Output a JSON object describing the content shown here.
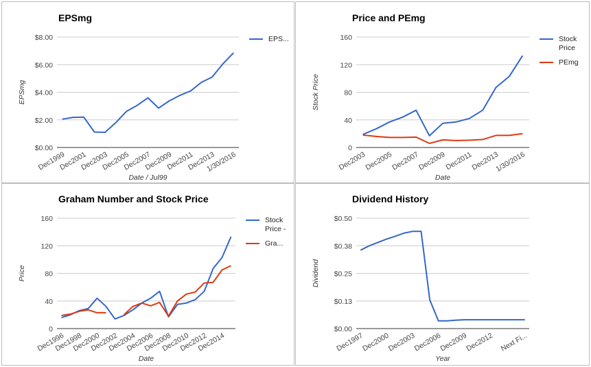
{
  "chart_data": [
    {
      "type": "line",
      "title": "EPSmg",
      "xlabel": "Date / Jul99",
      "ylabel": "EPSmg",
      "ylim": [
        0,
        8
      ],
      "yticks": [
        "$0.00",
        "$2.00",
        "$4.00",
        "$6.00",
        "$8.00"
      ],
      "yticks_values": [
        0,
        2,
        4,
        6,
        8
      ],
      "categories": [
        "Dec1999",
        "Dec2000",
        "Dec2001",
        "Dec2002",
        "Dec2003",
        "Dec2004",
        "Dec2005",
        "Dec2006",
        "Dec2007",
        "Dec2008",
        "Dec2009",
        "Dec2010",
        "Dec2011",
        "Dec2012",
        "Dec2013",
        "Dec2014",
        "1/30/2016"
      ],
      "xtick_labels": [
        "Dec1999",
        "Dec2001",
        "Dec2003",
        "Dec2005",
        "Dec2007",
        "Dec2009",
        "Dec2011",
        "Dec2013",
        "1/30/2016"
      ],
      "series": [
        {
          "name": "EPS...",
          "color": "#3366cc",
          "values": [
            2.05,
            2.18,
            2.2,
            1.12,
            1.1,
            1.8,
            2.62,
            3.05,
            3.6,
            2.85,
            3.38,
            3.78,
            4.1,
            4.72,
            5.1,
            6.05,
            6.85
          ]
        }
      ],
      "legend": "right",
      "grid": true
    },
    {
      "type": "line",
      "title": "Price and PEmg",
      "xlabel": "Date",
      "ylabel": "Stock Price",
      "ylim": [
        0,
        160
      ],
      "yticks": [
        "0",
        "40",
        "80",
        "120",
        "160"
      ],
      "yticks_values": [
        0,
        40,
        80,
        120,
        160
      ],
      "categories": [
        "Dec2003",
        "Dec2004",
        "Dec2005",
        "Dec2006",
        "Dec2007",
        "Dec2008",
        "Dec2009",
        "Dec2010",
        "Dec2011",
        "Dec2012",
        "Dec2013",
        "Dec2014",
        "1/30/2016"
      ],
      "xtick_labels": [
        "Dec2003",
        "Dec2005",
        "Dec2007",
        "Dec2009",
        "Dec2011",
        "Dec2013",
        "1/30/2016"
      ],
      "series": [
        {
          "name": "Stock Price",
          "color": "#3366cc",
          "values": [
            19,
            27,
            37,
            44,
            54,
            17,
            35,
            37,
            42,
            54,
            87,
            103,
            133
          ]
        },
        {
          "name": "PEmg",
          "color": "#dc3912",
          "values": [
            18,
            16,
            14.5,
            14.5,
            15,
            6,
            11,
            10,
            10.5,
            11.5,
            17.5,
            17.5,
            20
          ]
        }
      ],
      "legend": "right",
      "grid": true
    },
    {
      "type": "line",
      "title": "Graham Number and Stock Price",
      "xlabel": "Date",
      "ylabel": "Price",
      "ylim": [
        0,
        160
      ],
      "yticks": [
        "0",
        "40",
        "80",
        "120",
        "160"
      ],
      "yticks_values": [
        0,
        40,
        80,
        120,
        160
      ],
      "categories": [
        "Dec1996",
        "Dec1997",
        "Dec1998",
        "Dec1999",
        "Dec2000",
        "Dec2001",
        "Dec2002",
        "Dec2003",
        "Dec2004",
        "Dec2005",
        "Dec2006",
        "Dec2007",
        "Dec2008",
        "Dec2009",
        "Dec2010",
        "Dec2011",
        "Dec2012",
        "Dec2013",
        "Dec2014",
        "1/30/2016"
      ],
      "xtick_labels": [
        "Dec1996",
        "Dec1998",
        "Dec2000",
        "Dec2002",
        "Dec2004",
        "Dec2006",
        "Dec2008",
        "Dec2010",
        "Dec2012",
        "Dec2014"
      ],
      "series": [
        {
          "name": "Stock Price - ...",
          "color": "#3366cc",
          "values": [
            16,
            20,
            26,
            29,
            44,
            32,
            14,
            19,
            27,
            37,
            44,
            54,
            17,
            35,
            37,
            42,
            54,
            87,
            103,
            133
          ]
        },
        {
          "name": "Gra...",
          "color": "#dc3912",
          "values": [
            19,
            21,
            25,
            27,
            23,
            23,
            null,
            20,
            32,
            37,
            33,
            38,
            18,
            40,
            50,
            53,
            66,
            67,
            85,
            91
          ]
        }
      ],
      "legend_labels": [
        {
          "color": "#3366cc",
          "lines": [
            "Stock",
            "Price -"
          ]
        },
        {
          "color": "#dc3912",
          "lines": [
            "Gra..."
          ]
        }
      ],
      "legend": "right",
      "grid": true
    },
    {
      "type": "line",
      "title": "Dividend History",
      "xlabel": "Year",
      "ylabel": "Dividend",
      "ylim": [
        0,
        0.5
      ],
      "yticks": [
        "$0.00",
        "$0.13",
        "$0.25",
        "$0.38",
        "$0.50"
      ],
      "yticks_values": [
        0,
        0.125,
        0.25,
        0.375,
        0.5
      ],
      "categories": [
        "Dec1997",
        "Dec1998",
        "Dec1999",
        "Dec2000",
        "Dec2001",
        "Dec2002",
        "Dec2003",
        "Dec2004",
        "Dec2005",
        "Dec2006",
        "Dec2007",
        "Dec2008",
        "Dec2009",
        "Dec2010",
        "Dec2011",
        "Dec2012",
        "Dec2013",
        "Dec2014",
        "Dec2015",
        "Next Fi..."
      ],
      "xtick_labels": [
        "Dec1997",
        "Dec2000",
        "Dec2003",
        "Dec2006",
        "Dec2009",
        "Dec2012",
        "Next Fi..."
      ],
      "series": [
        {
          "name": "Dividend",
          "color": "#3366cc",
          "values": [
            0.355,
            0.375,
            0.39,
            0.405,
            0.418,
            0.432,
            0.44,
            0.44,
            0.13,
            0.035,
            0.035,
            0.038,
            0.04,
            0.04,
            0.04,
            0.04,
            0.04,
            0.04,
            0.04,
            0.04
          ]
        }
      ],
      "legend": "none",
      "grid": true
    }
  ]
}
